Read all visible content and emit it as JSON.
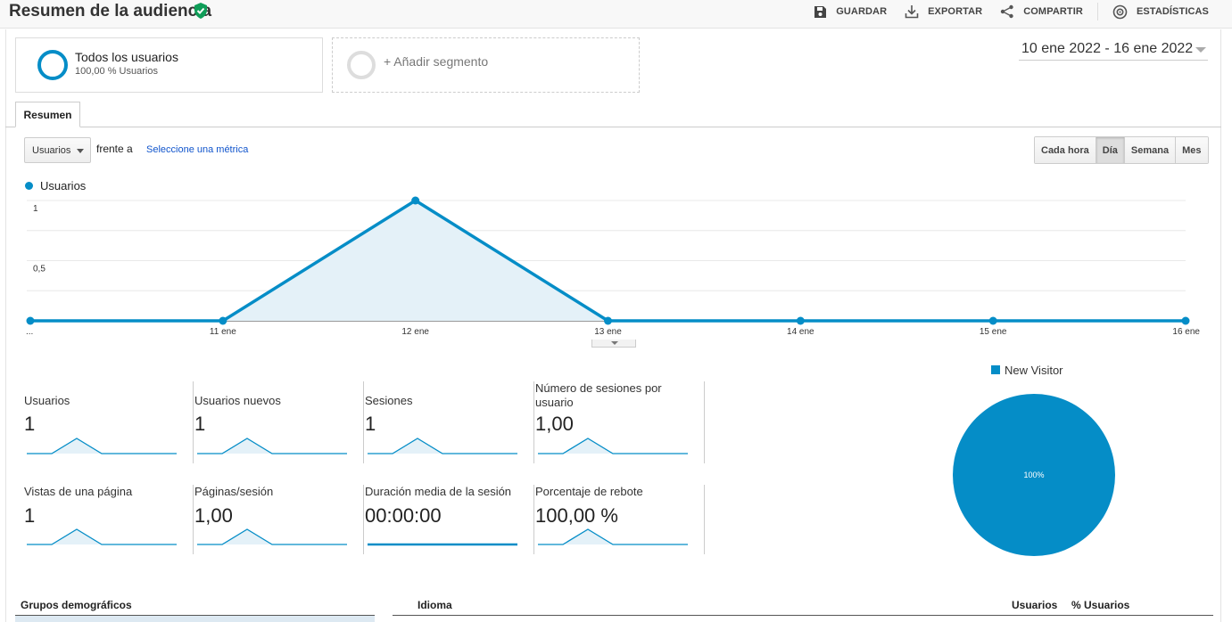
{
  "header": {
    "title": "Resumen de la audiencia",
    "actions": [
      {
        "label": "GUARDAR",
        "icon": "save-icon"
      },
      {
        "label": "EXPORTAR",
        "icon": "download-icon"
      },
      {
        "label": "COMPARTIR",
        "icon": "share-icon"
      },
      {
        "label": "ESTADÍSTICAS",
        "icon": "insights-icon"
      }
    ]
  },
  "segments": {
    "primary": {
      "title": "Todos los usuarios",
      "subtitle": "100,00 % Usuarios"
    },
    "add_label": "+ Añadir segmento"
  },
  "date_range": "10 ene 2022 - 16 ene 2022",
  "tabs": [
    {
      "label": "Resumen",
      "active": true
    }
  ],
  "controls": {
    "metric_select": "Usuarios",
    "versus_label": "frente a",
    "versus_link": "Seleccione una métrica",
    "granularity": [
      {
        "label": "Cada hora",
        "active": false
      },
      {
        "label": "Día",
        "active": true
      },
      {
        "label": "Semana",
        "active": false
      },
      {
        "label": "Mes",
        "active": false
      }
    ]
  },
  "colors": {
    "accent": "#058dc7",
    "area_fill": "#e4f1f8",
    "link": "#1155cc"
  },
  "chart_data": [
    {
      "type": "area",
      "series": [
        {
          "name": "Usuarios",
          "values": [
            0,
            0,
            1,
            0,
            0,
            0,
            0
          ]
        }
      ],
      "x": [
        "10 ene",
        "11 ene",
        "12 ene",
        "13 ene",
        "14 ene",
        "15 ene",
        "16 ene"
      ],
      "x_tick_labels": [
        "...",
        "11 ene",
        "12 ene",
        "13 ene",
        "14 ene",
        "15 ene",
        "16 ene"
      ],
      "y_ticks": [
        "1",
        "0,5"
      ],
      "ylim": [
        0,
        1
      ],
      "grid": true,
      "legend": "top-left"
    },
    {
      "type": "pie",
      "categories": [
        "New Visitor"
      ],
      "values": [
        100
      ],
      "labels": [
        "100%"
      ],
      "legend": "top"
    }
  ],
  "metrics": [
    {
      "label": "Usuarios",
      "value": "1",
      "spark": [
        0,
        0,
        1,
        0,
        0,
        0,
        0
      ]
    },
    {
      "label": "Usuarios nuevos",
      "value": "1",
      "spark": [
        0,
        0,
        1,
        0,
        0,
        0,
        0
      ]
    },
    {
      "label": "Sesiones",
      "value": "1",
      "spark": [
        0,
        0,
        1,
        0,
        0,
        0,
        0
      ]
    },
    {
      "label": "Número de sesiones por usuario",
      "value": "1,00",
      "spark": [
        0,
        0,
        1,
        0,
        0,
        0,
        0
      ]
    },
    {
      "label": "Vistas de una página",
      "value": "1",
      "spark": [
        0,
        0,
        1,
        0,
        0,
        0,
        0
      ]
    },
    {
      "label": "Páginas/sesión",
      "value": "1,00",
      "spark": [
        0,
        0,
        1,
        0,
        0,
        0,
        0
      ]
    },
    {
      "label": "Duración media de la sesión",
      "value": "00:00:00",
      "spark": [
        0,
        0,
        0,
        0,
        0,
        0,
        0
      ]
    },
    {
      "label": "Porcentaje de rebote",
      "value": "100,00 %",
      "spark": [
        0,
        0,
        1,
        0,
        0,
        0,
        0
      ]
    }
  ],
  "bottom": {
    "demographics_title": "Grupos demográficos",
    "language_title": "Idioma",
    "col_users": "Usuarios",
    "col_users_pct": "% Usuarios"
  }
}
